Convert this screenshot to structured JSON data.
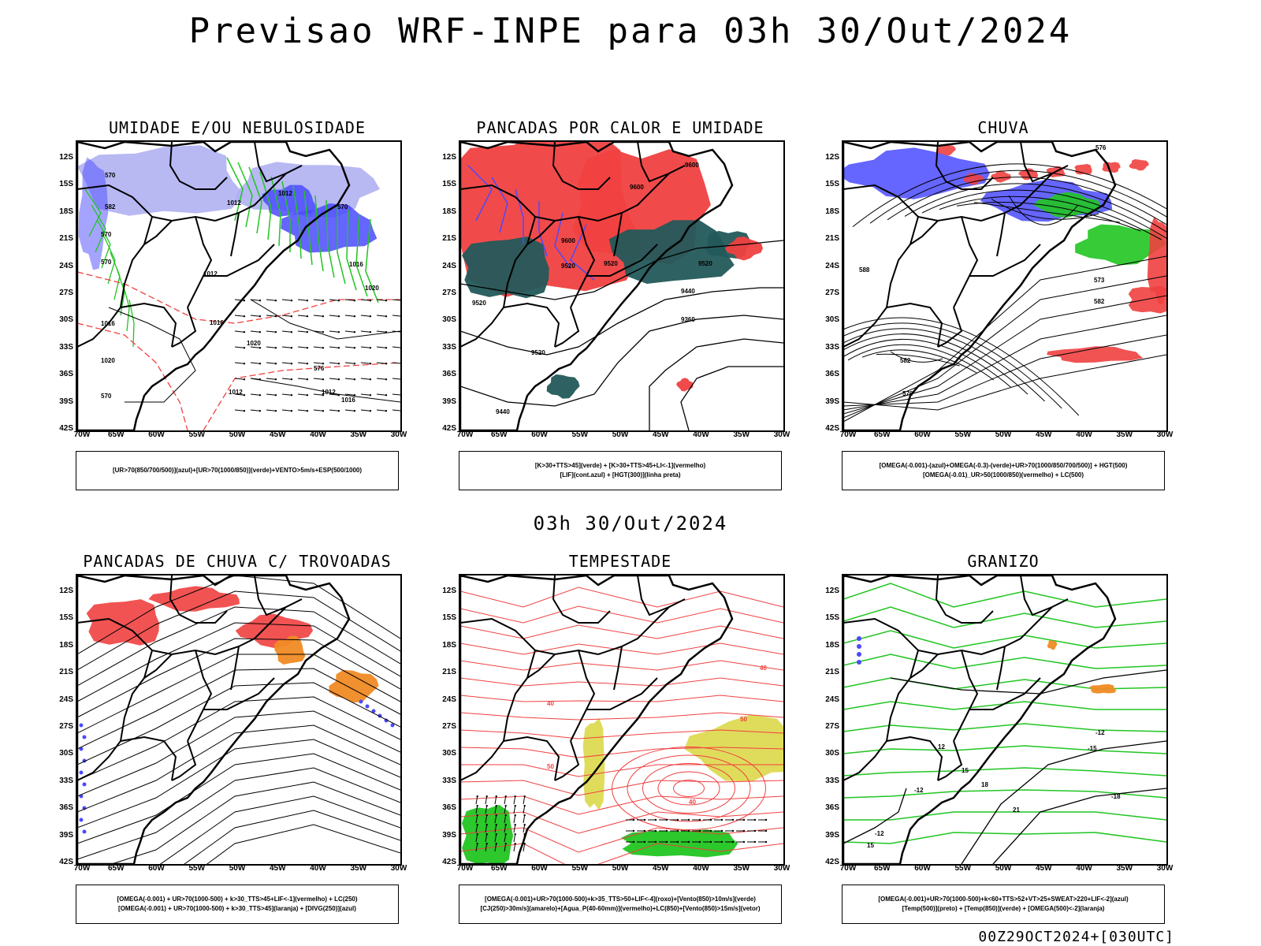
{
  "main_title": "Previsao WRF-INPE  para 03h 30/Out/2024",
  "sub_date": "03h 30/Out/2024",
  "footer": "00Z29OCT2024+[030UTC]",
  "lat_labels": [
    "12S",
    "15S",
    "18S",
    "21S",
    "24S",
    "27S",
    "30S",
    "33S",
    "36S",
    "39S",
    "42S"
  ],
  "lon_labels": [
    "70W",
    "65W",
    "60W",
    "55W",
    "50W",
    "45W",
    "40W",
    "35W",
    "30W"
  ],
  "colors": {
    "blue": "#4a4aff",
    "lavender": "#b0b0f2",
    "green": "#21c521",
    "red": "#f04040",
    "teal": "#23585a",
    "orange": "#f08a24",
    "yellow": "#dcd84a"
  },
  "panels": [
    {
      "title": "UMIDADE E/OU NEBULOSIDADE",
      "legend": [
        "[UR>70(850/700/500)](azul)+[UR>70(1000/850)](verde)+VENTO>5m/s+ESP(500/1000)"
      ],
      "contours": [
        "1012",
        "1012",
        "1012",
        "1016",
        "1020",
        "1016",
        "1020",
        "1012",
        "1016",
        "1020",
        "1012",
        "1016",
        "570",
        "570",
        "570",
        "582",
        "570",
        "576",
        "570"
      ]
    },
    {
      "title": "PANCADAS POR CALOR E UMIDADE",
      "legend": [
        "[K>30+TTS>45](verde) + [K>30+TTS>45+LI<-1](vermelho)",
        "[LIF](cont.azul) + [HGT(300)](linha preta)"
      ],
      "contours": [
        "9600",
        "9600",
        "9600",
        "9520",
        "9520",
        "9520",
        "9440",
        "9360",
        "9520",
        "9520",
        "9440"
      ]
    },
    {
      "title": "CHUVA",
      "legend": [
        "[OMEGA(-0.001)-(azul)+OMEGA(-0.3)-(verde)+UR>70(1000/850/700/500)] + HGT(500)",
        "[OMEGA(-0.01)_UR>50(1000/850)(vermelho) + LC(500)"
      ],
      "contours": [
        "582",
        "576",
        "573",
        "582",
        "576",
        "588"
      ]
    },
    {
      "title": "PANCADAS DE CHUVA C/ TROVOADAS",
      "legend": [
        "[OMEGA(-0.001) + UR>70(1000-500) + k>30_TTS>45+LIF<-1](vermelho) + LC(250)",
        "[OMEGA(-0.001) + UR>70(1000-500) + k>30_TTS>45](laranja) + [DIVG(250)](azul)"
      ],
      "contours": []
    },
    {
      "title": "TEMPESTADE",
      "legend": [
        "[OMEGA(-0.001)+UR>70(1000-500)+k>35_TTS>50+LIF<-4](roxo)+[Vento(850)>10m/s](verde)",
        "[CJ(250)>30m/s](amarelo)+[Agua_P(40-60mm)](vermelho)+LC(850)+[Vento(850)>15m/s](vetor)"
      ],
      "contours": [
        "40",
        "40",
        "50",
        "50",
        "40"
      ]
    },
    {
      "title": "GRANIZO",
      "legend": [
        "[OMEGA(-0.001)+UR>70(1000-500)+k<60+TTS>52+VT>25+SWEAT>220+LIF<-2](azul)",
        "[Temp(500)](preto) + [Temp(850)](verde) + [OMEGA(500)<-2](laranja)"
      ],
      "contours": [
        "-12",
        "-12",
        "-15",
        "-18",
        "-12",
        "12",
        "15",
        "18",
        "21",
        "15"
      ]
    }
  ]
}
